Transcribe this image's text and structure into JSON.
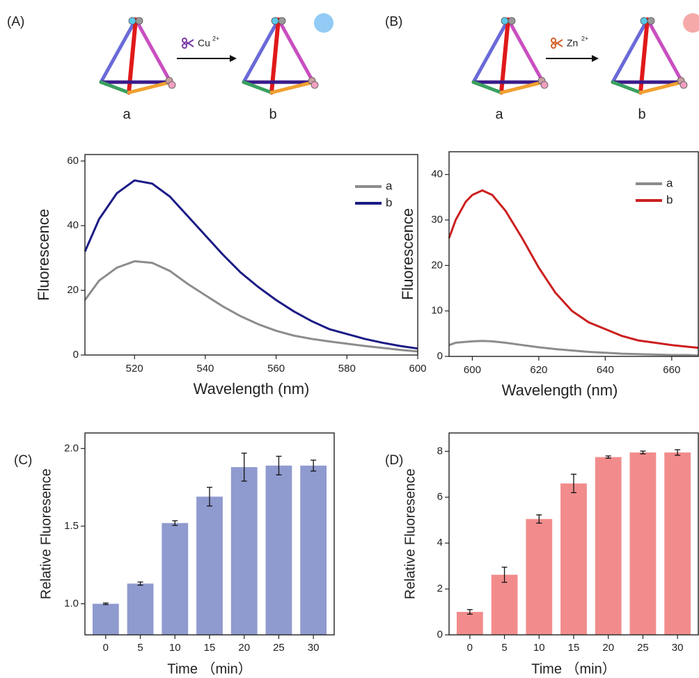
{
  "chart_data": [
    {
      "type": "line",
      "panel": "(A)",
      "xlabel": "Wavelength (nm)",
      "ylabel": "Fluorescence",
      "x": [
        506,
        510,
        515,
        520,
        525,
        530,
        535,
        540,
        545,
        550,
        555,
        560,
        565,
        570,
        575,
        580,
        585,
        590,
        595,
        600
      ],
      "series": [
        {
          "name": "a",
          "color": "#8c8c8c",
          "values": [
            17,
            23,
            27,
            29,
            28.5,
            26,
            22,
            18.5,
            15,
            12,
            9.5,
            7.5,
            6,
            5,
            4.2,
            3.5,
            2.8,
            2.2,
            1.6,
            1.1
          ]
        },
        {
          "name": "b",
          "color": "#1b1b85",
          "values": [
            32,
            42,
            50,
            54,
            53,
            49,
            43,
            37,
            31,
            25.5,
            21,
            17,
            13.5,
            10.5,
            8,
            6.5,
            5,
            3.8,
            2.8,
            2
          ]
        }
      ],
      "xlim": [
        506,
        600
      ],
      "xticks": [
        520,
        540,
        560,
        580,
        600
      ],
      "ylim": [
        0,
        62
      ],
      "yticks": [
        0,
        20,
        40,
        60
      ],
      "legend": "upper right"
    },
    {
      "type": "line",
      "panel": "(B)",
      "xlabel": "Wavelength (nm)",
      "ylabel": "Fluorescence",
      "x": [
        593,
        595,
        598,
        600,
        603,
        606,
        610,
        615,
        620,
        625,
        630,
        635,
        640,
        645,
        650,
        655,
        660,
        665,
        668
      ],
      "series": [
        {
          "name": "a",
          "color": "#8c8c8c",
          "values": [
            2.5,
            3,
            3.2,
            3.3,
            3.4,
            3.3,
            3,
            2.5,
            2,
            1.6,
            1.3,
            1,
            0.8,
            0.6,
            0.5,
            0.4,
            0.3,
            0.3,
            0.2
          ]
        },
        {
          "name": "b",
          "color": "#cc1f1f",
          "values": [
            26,
            30,
            34,
            35.5,
            36.5,
            35.5,
            32,
            26,
            19.5,
            14,
            10,
            7.5,
            6,
            4.5,
            3.5,
            3,
            2.5,
            2.1,
            1.9
          ]
        }
      ],
      "xlim": [
        593,
        668
      ],
      "xticks": [
        600,
        620,
        640,
        660
      ],
      "ylim": [
        0,
        45
      ],
      "yticks": [
        0,
        10,
        20,
        30,
        40
      ],
      "legend": "upper right"
    },
    {
      "type": "bar",
      "panel": "(C)",
      "xlabel": "Time （min）",
      "ylabel": "Relative Fluoresence",
      "categories": [
        "0",
        "5",
        "10",
        "15",
        "20",
        "25",
        "30"
      ],
      "color": "#8f9acf",
      "values": [
        1.0,
        1.13,
        1.52,
        1.69,
        1.88,
        1.89,
        1.89
      ],
      "errors": [
        0.005,
        0.01,
        0.015,
        0.06,
        0.09,
        0.06,
        0.035
      ],
      "ylim": [
        0.8,
        2.1
      ],
      "yticks": [
        {
          "value": 1,
          "label": "1.0"
        },
        1.5,
        {
          "value": 2,
          "label": "2.0"
        }
      ]
    },
    {
      "type": "bar",
      "panel": "(D)",
      "xlabel": "Time （min）",
      "ylabel": "Relative Fluoresence",
      "categories": [
        "0",
        "5",
        "10",
        "15",
        "20",
        "25",
        "30"
      ],
      "color": "#f28c8c",
      "values": [
        1.0,
        2.62,
        5.05,
        6.6,
        7.75,
        7.95,
        7.95
      ],
      "errors": [
        0.1,
        0.33,
        0.18,
        0.4,
        0.05,
        0.06,
        0.12
      ],
      "ylim": [
        0,
        8.8
      ],
      "yticks": [
        0,
        2,
        4,
        6,
        8
      ]
    }
  ],
  "schemes": [
    {
      "from": "a",
      "ion": "Cu",
      "charge": "2+",
      "to": "b"
    },
    {
      "from": "a",
      "ion": "Zn",
      "charge": "2+",
      "to": "b"
    }
  ]
}
